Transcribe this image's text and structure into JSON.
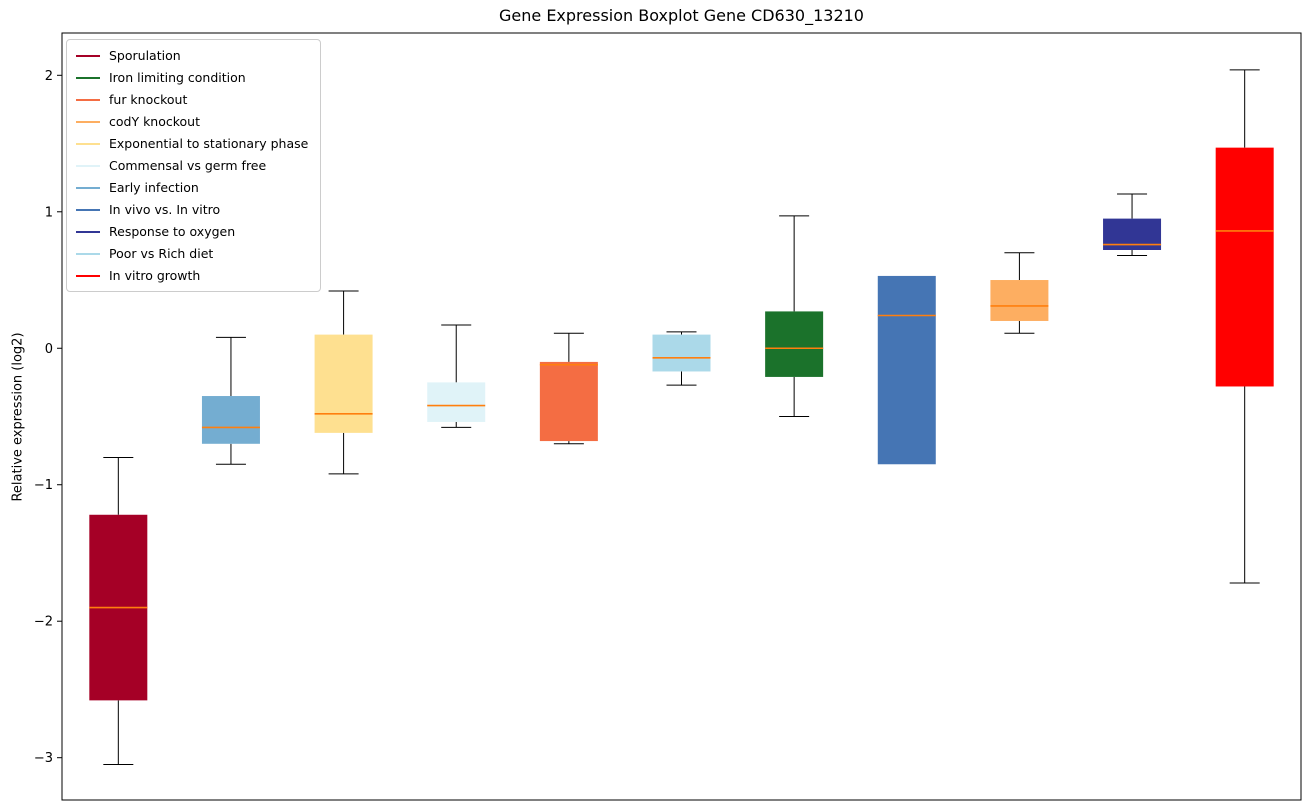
{
  "chart_data": {
    "type": "boxplot",
    "title": "Gene Expression Boxplot Gene CD630_13210",
    "ylabel": "Relative expression (log2)",
    "xlabel": "",
    "grid": false,
    "legend_position": "upper left",
    "ylim": [
      -3.31,
      2.31
    ],
    "median_color": "#ff7f0e",
    "whisker_color": "#000000",
    "yticks": [
      {
        "value": 2,
        "label": "2"
      },
      {
        "value": 1,
        "label": "1"
      },
      {
        "value": 0,
        "label": "0"
      },
      {
        "value": -1,
        "label": "−1"
      },
      {
        "value": -2,
        "label": "−2"
      },
      {
        "value": -3,
        "label": "−3"
      }
    ],
    "legend": [
      {
        "label": "Sporulation",
        "color": "#a50026"
      },
      {
        "label": "Iron limiting condition",
        "color": "#1b722b"
      },
      {
        "label": "fur knockout",
        "color": "#f46d43"
      },
      {
        "label": "codY knockout",
        "color": "#fdae61"
      },
      {
        "label": "Exponential to stationary phase",
        "color": "#fee090"
      },
      {
        "label": "Commensal vs germ free",
        "color": "#e0f3f8"
      },
      {
        "label": "Early infection",
        "color": "#74add1"
      },
      {
        "label": "In vivo vs. In vitro",
        "color": "#4575b4"
      },
      {
        "label": "Response to oxygen",
        "color": "#313695"
      },
      {
        "label": "Poor vs Rich diet",
        "color": "#abd9e9"
      },
      {
        "label": "In vitro growth",
        "color": "#ff0000"
      }
    ],
    "series": [
      {
        "name": "Sporulation",
        "color": "#a50026",
        "whisker_low": -3.05,
        "q1": -2.58,
        "median": -1.9,
        "q3": -1.22,
        "whisker_high": -0.8
      },
      {
        "name": "Early infection",
        "color": "#74add1",
        "whisker_low": -0.85,
        "q1": -0.7,
        "median": -0.58,
        "q3": -0.35,
        "whisker_high": 0.08
      },
      {
        "name": "Exponential to stationary phase",
        "color": "#fee090",
        "whisker_low": -0.92,
        "q1": -0.62,
        "median": -0.48,
        "q3": 0.1,
        "whisker_high": 0.42
      },
      {
        "name": "Commensal vs germ free",
        "color": "#e0f3f8",
        "whisker_low": -0.58,
        "q1": -0.54,
        "median": -0.42,
        "q3": -0.25,
        "whisker_high": 0.17
      },
      {
        "name": "fur knockout",
        "color": "#f46d43",
        "whisker_low": -0.7,
        "q1": -0.68,
        "median": -0.12,
        "q3": -0.1,
        "whisker_high": 0.11
      },
      {
        "name": "Poor vs Rich diet",
        "color": "#abd9e9",
        "whisker_low": -0.27,
        "q1": -0.17,
        "median": -0.07,
        "q3": 0.1,
        "whisker_high": 0.12
      },
      {
        "name": "Iron limiting condition",
        "color": "#1b722b",
        "whisker_low": -0.5,
        "q1": -0.21,
        "median": 0.0,
        "q3": 0.27,
        "whisker_high": 0.97
      },
      {
        "name": "In vivo vs. In vitro",
        "color": "#4575b4",
        "whisker_low": -0.85,
        "q1": -0.85,
        "median": 0.24,
        "q3": 0.53,
        "whisker_high": 0.53
      },
      {
        "name": "codY knockout",
        "color": "#fdae61",
        "whisker_low": 0.11,
        "q1": 0.2,
        "median": 0.31,
        "q3": 0.5,
        "whisker_high": 0.7
      },
      {
        "name": "Response to oxygen",
        "color": "#313695",
        "whisker_low": 0.68,
        "q1": 0.72,
        "median": 0.76,
        "q3": 0.95,
        "whisker_high": 1.13
      },
      {
        "name": "In vitro growth",
        "color": "#ff0000",
        "whisker_low": -1.72,
        "q1": -0.28,
        "median": 0.86,
        "q3": 1.47,
        "whisker_high": 2.04
      }
    ]
  }
}
